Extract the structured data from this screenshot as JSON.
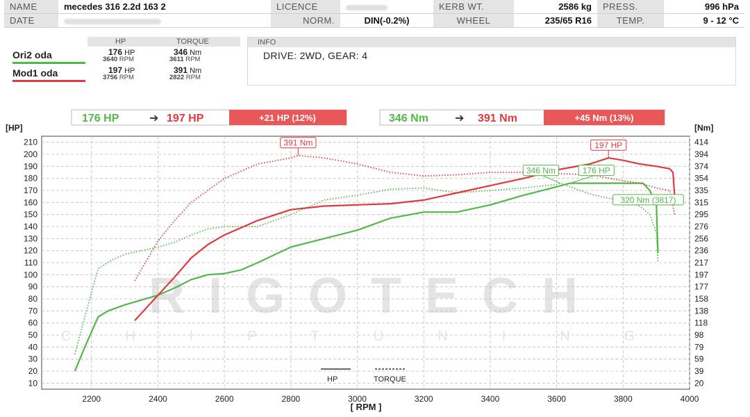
{
  "header": {
    "name_label": "NAME",
    "name_value": "mecedes 316 2.2d 163 2",
    "licence_label": "LICENCE",
    "kerb_label": "KERB WT.",
    "kerb_value": "2586 kg",
    "press_label": "PRESS.",
    "press_value": "996 hPa",
    "date_label": "DATE",
    "norm_label": "NORM.",
    "norm_value": "DIN(-0.2%)",
    "wheel_label": "WHEEL",
    "wheel_value": "235/65 R16",
    "temp_label": "TEMP.",
    "temp_value": "9 - 12 °C"
  },
  "comparison": {
    "hp_header": "HP",
    "torque_header": "TORQUE",
    "runs": [
      {
        "name": "Ori2 oda",
        "color": "#52b848",
        "hp": "176",
        "hp_unit": "HP",
        "hp_rpm": "3640",
        "torque": "346",
        "torque_unit": "Nm",
        "torque_rpm": "3611",
        "rpm_unit": "RPM"
      },
      {
        "name": "Mod1 oda",
        "color": "#e0393e",
        "hp": "197",
        "hp_unit": "HP",
        "hp_rpm": "3756",
        "torque": "391",
        "torque_unit": "Nm",
        "torque_rpm": "2822",
        "rpm_unit": "RPM"
      }
    ]
  },
  "info": {
    "label": "INFO",
    "text": "DRIVE: 2WD,  GEAR: 4"
  },
  "summary": {
    "hp_from": "176 HP",
    "hp_to": "197 HP",
    "hp_gain": "+21 HP  (12%)",
    "nm_from": "346 Nm",
    "nm_to": "391 Nm",
    "nm_gain": "+45 Nm  (13%)"
  },
  "legend": {
    "hp": "HP",
    "torque": "TORQUE"
  },
  "watermark": {
    "main": "RIGOTECH",
    "sub": "CHIPTUNING"
  },
  "colors": {
    "stock": "#52b848",
    "tuned": "#e0393e",
    "gain_box": "#e85858"
  },
  "chart_data": {
    "type": "line",
    "xlabel": "[ RPM ]",
    "ylabel_left": "[HP]",
    "ylabel_right": "[Nm]",
    "xlim": [
      2050,
      4000
    ],
    "ylim": [
      5,
      215
    ],
    "x_ticks": [
      2200,
      2400,
      2600,
      2800,
      3000,
      3200,
      3400,
      3600,
      3800,
      4000
    ],
    "y_ticks": [
      10,
      20,
      30,
      40,
      50,
      60,
      70,
      80,
      90,
      100,
      110,
      120,
      130,
      140,
      150,
      160,
      170,
      180,
      190,
      200,
      210
    ],
    "y_right_ticks": [
      "20",
      "39",
      "59",
      "79",
      "98",
      "118",
      "138",
      "158",
      "177",
      "197",
      "217",
      "236",
      "256",
      "276",
      "295",
      "315",
      "335",
      "354",
      "374",
      "394",
      "414"
    ],
    "grid": true,
    "series": [
      {
        "name": "Ori2 oda",
        "quantity": "HP",
        "color": "#52b848",
        "style": "solid",
        "x": [
          2150,
          2180,
          2220,
          2250,
          2300,
          2350,
          2400,
          2450,
          2500,
          2550,
          2600,
          2650,
          2700,
          2800,
          2900,
          3000,
          3100,
          3200,
          3300,
          3400,
          3500,
          3600,
          3640,
          3700,
          3800,
          3860,
          3880,
          3900,
          3905
        ],
        "y": [
          20,
          40,
          65,
          70,
          75,
          79,
          83,
          89,
          96,
          100,
          101,
          104,
          110,
          123,
          130,
          137,
          147,
          152,
          152,
          158,
          166,
          173,
          176,
          176,
          176,
          176,
          170,
          158,
          118
        ]
      },
      {
        "name": "Ori2 oda",
        "quantity": "Torque (HP-scale)",
        "color": "#52b848",
        "style": "dotted",
        "x": [
          2150,
          2180,
          2220,
          2260,
          2300,
          2350,
          2400,
          2450,
          2500,
          2550,
          2600,
          2700,
          2800,
          2900,
          3000,
          3100,
          3200,
          3300,
          3400,
          3500,
          3600,
          3611,
          3700,
          3800,
          3850,
          3880,
          3900,
          3905
        ],
        "y": [
          34,
          65,
          105,
          112,
          117,
          120,
          123,
          127,
          133,
          138,
          140,
          140,
          150,
          162,
          166,
          171,
          172,
          168,
          170,
          172,
          175,
          176,
          167,
          161,
          157,
          150,
          135,
          110
        ]
      },
      {
        "name": "Mod1 oda",
        "quantity": "HP",
        "color": "#e0393e",
        "style": "solid",
        "x": [
          2330,
          2400,
          2450,
          2500,
          2550,
          2600,
          2700,
          2800,
          2900,
          3000,
          3100,
          3200,
          3300,
          3400,
          3500,
          3600,
          3700,
          3756,
          3800,
          3850,
          3900,
          3940,
          3950,
          3955
        ],
        "y": [
          62,
          83,
          98,
          114,
          125,
          133,
          145,
          154,
          157,
          158,
          159,
          162,
          168,
          174,
          180,
          187,
          192,
          197,
          195,
          192,
          190,
          188,
          185,
          165
        ]
      },
      {
        "name": "Mod1 oda",
        "quantity": "Torque (HP-scale)",
        "color": "#e0393e",
        "style": "dotted",
        "x": [
          2330,
          2400,
          2450,
          2500,
          2550,
          2600,
          2700,
          2800,
          2822,
          2900,
          3000,
          3100,
          3200,
          3300,
          3400,
          3500,
          3600,
          3700,
          3800,
          3850,
          3900,
          3940,
          3955
        ],
        "y": [
          95,
          128,
          145,
          160,
          170,
          180,
          192,
          197,
          199,
          197,
          192,
          185,
          182,
          183,
          185,
          185,
          184,
          183,
          178,
          176,
          172,
          170,
          150
        ]
      }
    ],
    "annotations": [
      {
        "text": "391 Nm",
        "x": 2822,
        "y": 199,
        "color": "#e0393e"
      },
      {
        "text": "197 HP",
        "x": 3756,
        "y": 197,
        "color": "#e0393e"
      },
      {
        "text": "346 Nm",
        "x": 3611,
        "y": 176,
        "color": "#52b848"
      },
      {
        "text": "176 HP",
        "x": 3640,
        "y": 176,
        "color": "#52b848"
      },
      {
        "text": "320 Nm (3817)",
        "x": 3817,
        "y": 162,
        "color": "#52b848"
      }
    ]
  }
}
